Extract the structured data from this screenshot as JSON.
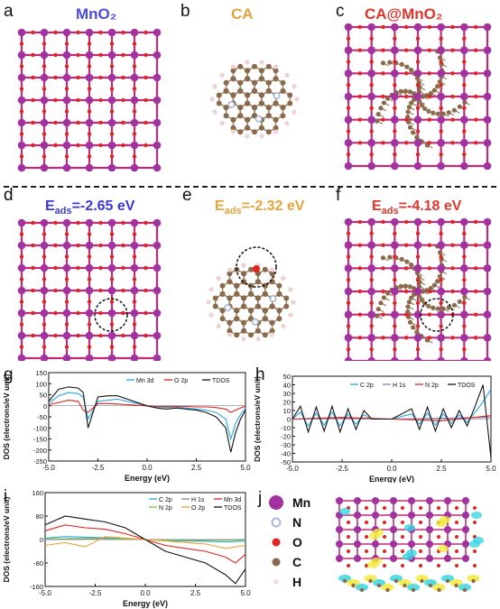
{
  "panels": {
    "a": {
      "letter": "a",
      "title": "MnO₂",
      "title_color": "#4b4de0"
    },
    "b": {
      "letter": "b",
      "title": "CA",
      "title_color": "#e9a23b"
    },
    "c": {
      "letter": "c",
      "title": "CA@MnO₂",
      "title_color": "#e0362a"
    },
    "d": {
      "letter": "d",
      "eads_prefix": "E",
      "eads_sub": "ads",
      "eads_value": "=-2.65 eV",
      "color": "#3a3ad8"
    },
    "e": {
      "letter": "e",
      "eads_prefix": "E",
      "eads_sub": "ads",
      "eads_value": "=-2.32 eV",
      "color": "#e9a23b"
    },
    "f": {
      "letter": "f",
      "eads_prefix": "E",
      "eads_sub": "ads",
      "eads_value": "=-4.18 eV",
      "color": "#e0362a"
    },
    "g": {
      "letter": "g"
    },
    "h": {
      "letter": "h"
    },
    "i": {
      "letter": "i"
    },
    "j": {
      "letter": "j"
    }
  },
  "colors": {
    "mn": "#a2329f",
    "o": "#e0241f",
    "c": "#8a6a4a",
    "n": "#aab6d6",
    "h": "#f0d6d6",
    "bond": "#c22a78"
  },
  "atom_legend": [
    {
      "label": "Mn",
      "color": "#a2329f"
    },
    {
      "label": "N",
      "color": "#aab6d6"
    },
    {
      "label": "O",
      "color": "#e0241f"
    },
    {
      "label": "C",
      "color": "#8a6a4a"
    },
    {
      "label": "H",
      "color": "#f0d6d6"
    }
  ],
  "chart_data": [
    {
      "type": "line",
      "panel": "g",
      "xlabel": "Energy (eV)",
      "ylabel": "DOS (electrons/eV unit)",
      "xlim": [
        -5.0,
        5.0
      ],
      "ylim": [
        -250,
        150
      ],
      "xticks": [
        "-5.0",
        "-2.5",
        "0.0",
        "2.5",
        "5.0"
      ],
      "yticks": [
        "150",
        "100",
        "50",
        "0",
        "-50",
        "-100",
        "-150",
        "-200",
        "-250"
      ],
      "series": [
        {
          "name": "Mn 3d",
          "color": "#2aa7e0",
          "x": [
            -5,
            -4.5,
            -4,
            -3.5,
            -3.25,
            -3,
            -2.5,
            -2,
            -1.5,
            -1,
            -0.5,
            0,
            0.5,
            1,
            1.5,
            2,
            2.5,
            3,
            3.5,
            4,
            4.25,
            4.5,
            4.75,
            5
          ],
          "y": [
            10,
            45,
            60,
            55,
            40,
            -60,
            20,
            25,
            30,
            20,
            10,
            0,
            -5,
            -8,
            -5,
            -10,
            -15,
            -20,
            -30,
            -60,
            -150,
            -80,
            -40,
            -10
          ]
        },
        {
          "name": "O 2p",
          "color": "#e0241f",
          "x": [
            -5,
            -4.5,
            -4,
            -3.5,
            -3.25,
            -3,
            -2.5,
            -2,
            -1.5,
            -1,
            -0.5,
            0,
            0.5,
            1,
            1.5,
            2,
            2.5,
            3,
            3.5,
            4,
            4.25,
            4.5,
            4.75,
            5
          ],
          "y": [
            5,
            15,
            25,
            20,
            -20,
            -30,
            10,
            10,
            8,
            5,
            2,
            0,
            -2,
            -3,
            -2,
            -3,
            -5,
            -5,
            -8,
            -15,
            -30,
            -20,
            -10,
            -2
          ]
        },
        {
          "name": "TDOS",
          "color": "#111111",
          "x": [
            -5,
            -4.5,
            -4,
            -3.5,
            -3.25,
            -3,
            -2.5,
            -2,
            -1.5,
            -1,
            -0.5,
            0,
            0.5,
            1,
            1.5,
            2,
            2.5,
            3,
            3.5,
            4,
            4.25,
            4.5,
            4.75,
            5
          ],
          "y": [
            20,
            75,
            85,
            80,
            60,
            -100,
            40,
            45,
            45,
            30,
            15,
            0,
            -10,
            -15,
            -10,
            -15,
            -20,
            -30,
            -50,
            -100,
            -210,
            -120,
            -60,
            -20
          ]
        }
      ]
    },
    {
      "type": "line",
      "panel": "h",
      "xlabel": "Energy (eV)",
      "ylabel": "DOS (electrons/eV unit)",
      "xlim": [
        -5.0,
        5.0
      ],
      "ylim": [
        -50,
        50
      ],
      "xticks": [
        "-5.0",
        "-2.5",
        "0.0",
        "2.5",
        "5.0"
      ],
      "yticks": [
        "50",
        "40",
        "30",
        "20",
        "10",
        "0",
        "-10",
        "-20",
        "-30",
        "-40",
        "-50"
      ],
      "series": [
        {
          "name": "C 2p",
          "color": "#2aa7e0",
          "x": [
            -5,
            -4.6,
            -4.2,
            -3.8,
            -3.4,
            -3.0,
            -2.6,
            -2.2,
            -1.8,
            -1.4,
            -1.0,
            0,
            1.0,
            1.4,
            1.8,
            2.2,
            2.6,
            3.0,
            3.4,
            3.8,
            4.2,
            4.6,
            5
          ],
          "y": [
            0,
            8,
            -8,
            7,
            -7,
            8,
            -8,
            6,
            -6,
            5,
            0,
            0,
            6,
            -6,
            7,
            -7,
            6,
            -5,
            5,
            -4,
            8,
            20,
            35
          ]
        },
        {
          "name": "H 1s",
          "color": "#8a7ac0",
          "x": [
            -5,
            -2.5,
            0,
            2.5,
            5
          ],
          "y": [
            0,
            1,
            0,
            1,
            2
          ]
        },
        {
          "name": "N 2p",
          "color": "#e0241f",
          "x": [
            -5,
            -2.5,
            0,
            2.5,
            5
          ],
          "y": [
            0,
            2,
            0,
            -2,
            4
          ]
        },
        {
          "name": "TDOS",
          "color": "#111111",
          "x": [
            -5,
            -4.6,
            -4.2,
            -3.8,
            -3.4,
            -3.0,
            -2.6,
            -2.2,
            -1.8,
            -1.4,
            -1.0,
            0,
            1.0,
            1.4,
            1.8,
            2.2,
            2.6,
            3.0,
            3.4,
            3.8,
            4.2,
            4.6,
            5
          ],
          "y": [
            0,
            15,
            -15,
            14,
            -14,
            15,
            -15,
            12,
            -12,
            10,
            0,
            0,
            12,
            -12,
            14,
            -14,
            12,
            -10,
            10,
            -8,
            15,
            40,
            -45
          ]
        }
      ]
    },
    {
      "type": "line",
      "panel": "i",
      "xlabel": "Energy (eV)",
      "ylabel": "DOS (electrons/eV unit)",
      "xlim": [
        -5.0,
        5.0
      ],
      "ylim": [
        -160,
        160
      ],
      "xticks": [
        "-5.0",
        "-2.5",
        "0.0",
        "2.5",
        "5.0"
      ],
      "yticks": [
        "160",
        "80",
        "0",
        "-80",
        "-160"
      ],
      "series": [
        {
          "name": "C 2p",
          "color": "#2aa7e0",
          "x": [
            -5,
            -4,
            -3,
            -2,
            -1,
            0,
            1,
            2,
            3,
            4,
            5
          ],
          "y": [
            5,
            10,
            8,
            6,
            3,
            0,
            -3,
            -5,
            -6,
            -8,
            -5
          ]
        },
        {
          "name": "H 1s",
          "color": "#8a7ac0",
          "x": [
            -5,
            -2.5,
            0,
            2.5,
            5
          ],
          "y": [
            0,
            2,
            0,
            -2,
            0
          ]
        },
        {
          "name": "Mn 3d",
          "color": "#e0241f",
          "x": [
            -5,
            -4,
            -3,
            -2,
            -1,
            0,
            1,
            2,
            3,
            4,
            4.5,
            5
          ],
          "y": [
            30,
            50,
            40,
            35,
            20,
            0,
            -20,
            -30,
            -40,
            -60,
            -80,
            -50
          ]
        },
        {
          "name": "N 2p",
          "color": "#7ac043",
          "x": [
            -5,
            -2.5,
            0,
            2.5,
            5
          ],
          "y": [
            2,
            4,
            0,
            -3,
            -2
          ]
        },
        {
          "name": "O 2p",
          "color": "#e9a23b",
          "x": [
            -5,
            -4,
            -3,
            -2,
            -1,
            0,
            1,
            2,
            3,
            4,
            5
          ],
          "y": [
            -20,
            -10,
            -25,
            10,
            5,
            0,
            -5,
            -10,
            -15,
            -30,
            -20
          ]
        },
        {
          "name": "TDOS",
          "color": "#111111",
          "x": [
            -5,
            -4,
            -3,
            -2,
            -1,
            0,
            1,
            2,
            3,
            4,
            4.5,
            5
          ],
          "y": [
            50,
            80,
            70,
            60,
            40,
            0,
            -40,
            -60,
            -80,
            -120,
            -150,
            -100
          ]
        }
      ]
    }
  ]
}
